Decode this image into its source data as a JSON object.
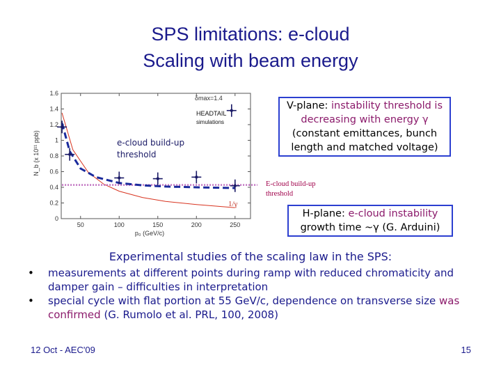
{
  "slide": {
    "title_line1": "SPS limitations: e-cloud",
    "title_line2": "Scaling with beam energy",
    "vplane": {
      "label": "V-plane:",
      "highlight": "instability threshold is decreasing with energy γ",
      "rest": "(constant emittances, bunch length and matched voltage)"
    },
    "buildup_label_line1": "E-cloud build-up",
    "buildup_label_line2": "threshold",
    "hplane": {
      "label": "H-plane:",
      "highlight": "e-cloud instability",
      "rest": "growth time ~γ (G. Arduini)"
    },
    "experimental_heading": "Experimental studies of the scaling law in the SPS:",
    "bullets": [
      {
        "text": "measurements at different points during ramp with reduced chromaticity and damper gain – difficulties in interpretation"
      },
      {
        "text": "special cycle with flat portion at 55 GeV/c, dependence on transverse size",
        "confirmed": "was confirmed",
        "citation": "(G. Rumolo et al. PRL, 100, 2008)"
      }
    ],
    "bullet_glyph": "•",
    "footer": "12 Oct - AEC'09",
    "page_number": "15"
  },
  "chart_data": {
    "type": "line",
    "xlabel": "p₀ (GeV/c)",
    "ylabel": "N_b (x 10¹¹ ppb)",
    "xlim": [
      25,
      270
    ],
    "ylim": [
      0,
      1.6
    ],
    "xticks": [
      50,
      100,
      150,
      200,
      250
    ],
    "yticks": [
      0,
      0.2,
      0.4,
      0.6,
      0.8,
      1,
      1.2,
      1.4,
      1.6
    ],
    "legend_headtail_line1": "HEADTAIL",
    "legend_headtail_line2": "simulations",
    "annotation_smax": "δmax=1.4",
    "annotation_buildup_line1": "e-cloud build-up",
    "annotation_buildup_line2": "threshold",
    "annotation_inv_gamma": "1/γ",
    "series": [
      {
        "name": "HEADTAIL simulations",
        "x": [
          26,
          36,
          100,
          150,
          200,
          250
        ],
        "y": [
          1.17,
          0.82,
          0.52,
          0.51,
          0.53,
          0.42
        ]
      },
      {
        "name": "fit",
        "x": [
          26,
          36,
          50,
          70,
          100,
          130,
          160,
          200,
          250
        ],
        "y": [
          1.22,
          0.86,
          0.64,
          0.53,
          0.455,
          0.425,
          0.41,
          0.4,
          0.39
        ]
      },
      {
        "name": "1/γ",
        "x": [
          26,
          40,
          60,
          80,
          100,
          130,
          160,
          200,
          250
        ],
        "y": [
          1.35,
          0.88,
          0.59,
          0.44,
          0.35,
          0.27,
          0.22,
          0.18,
          0.14
        ]
      },
      {
        "name": "e-cloud build-up threshold",
        "x": [
          26,
          270
        ],
        "y": [
          0.43,
          0.43
        ]
      }
    ],
    "legend_marker_y": 1.38,
    "colors": {
      "simulations": "#1a1a66",
      "fit": "#1a2a9c",
      "inv_gamma": "#d8331f",
      "buildup": "#c070c0",
      "axis": "#555555"
    }
  }
}
